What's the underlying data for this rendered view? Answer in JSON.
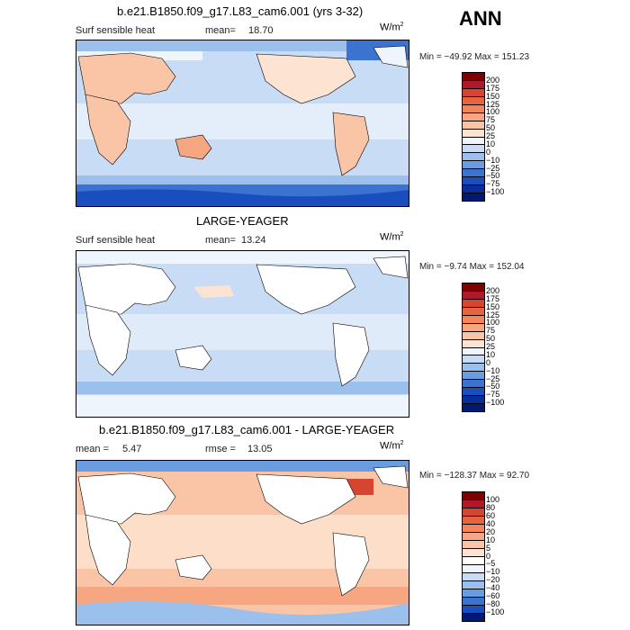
{
  "figure": {
    "season": "ANN",
    "units_base": "W/m",
    "units_exp": "2"
  },
  "panels": [
    {
      "title": "b.e21.B1850.f09_g17.L83_cam6.001 (yrs 3-32)",
      "left_label": "Surf sensible heat",
      "stat_label": "mean=",
      "stat_value": "18.70",
      "minmax": "Min = −49.92 Max = 151.23",
      "colorbar": {
        "labels": [
          "200",
          "175",
          "150",
          "125",
          "100",
          "75",
          "50",
          "25",
          "10",
          "0",
          "−10",
          "−25",
          "−50",
          "−75",
          "−100"
        ],
        "colors": [
          "#800000",
          "#b2182b",
          "#d6452f",
          "#e8643f",
          "#f4845a",
          "#f7a682",
          "#fac5a6",
          "#fde3d2",
          "#eef5fc",
          "#c8ddf5",
          "#9cc0ec",
          "#6a9de0",
          "#3c73d0",
          "#1a4ebf",
          "#0a2d9c",
          "#001a73"
        ]
      }
    },
    {
      "title": "LARGE-YEAGER",
      "left_label": "Surf sensible heat",
      "stat_label": "mean=",
      "stat_value": "13.24",
      "minmax": "Min = −9.74 Max = 152.04",
      "colorbar": {
        "labels": [
          "200",
          "175",
          "150",
          "125",
          "100",
          "75",
          "50",
          "25",
          "10",
          "0",
          "−10",
          "−25",
          "−50",
          "−75",
          "−100"
        ],
        "colors": [
          "#800000",
          "#b2182b",
          "#d6452f",
          "#e8643f",
          "#f4845a",
          "#f7a682",
          "#fac5a6",
          "#fde3d2",
          "#eef5fc",
          "#c8ddf5",
          "#9cc0ec",
          "#6a9de0",
          "#3c73d0",
          "#1a4ebf",
          "#0a2d9c",
          "#001a73"
        ]
      }
    },
    {
      "title": "b.e21.B1850.f09_g17.L83_cam6.001 - LARGE-YEAGER",
      "left_label": "mean =",
      "left_value": "5.47",
      "stat_label": "rmse =",
      "stat_value": "13.05",
      "minmax": "Min = −128.37 Max = 92.70",
      "colorbar": {
        "labels": [
          "100",
          "80",
          "60",
          "40",
          "20",
          "10",
          "5",
          "0",
          "−5",
          "−10",
          "−20",
          "−40",
          "−60",
          "−80",
          "−100"
        ],
        "colors": [
          "#800000",
          "#b2182b",
          "#d6452f",
          "#e8643f",
          "#f4845a",
          "#f7a682",
          "#fac5a6",
          "#fde3d2",
          "#ffffff",
          "#eef5fc",
          "#c8ddf5",
          "#9cc0ec",
          "#6a9de0",
          "#3c73d0",
          "#1a4ebf",
          "#001a73"
        ]
      }
    }
  ],
  "chart_data": [
    {
      "type": "heatmap",
      "title": "b.e21.B1850.f09_g17.L83_cam6.001 (yrs 3-32)",
      "variable": "Surf sensible heat",
      "units": "W/m2",
      "mean": 18.7,
      "min": -49.92,
      "max": 151.23,
      "contour_levels": [
        -100,
        -75,
        -50,
        -25,
        -10,
        0,
        10,
        25,
        50,
        75,
        100,
        125,
        150,
        175,
        200
      ]
    },
    {
      "type": "heatmap",
      "title": "LARGE-YEAGER",
      "variable": "Surf sensible heat",
      "units": "W/m2",
      "mean": 13.24,
      "min": -9.74,
      "max": 152.04,
      "contour_levels": [
        -100,
        -75,
        -50,
        -25,
        -10,
        0,
        10,
        25,
        50,
        75,
        100,
        125,
        150,
        175,
        200
      ]
    },
    {
      "type": "heatmap",
      "title": "b.e21.B1850.f09_g17.L83_cam6.001 - LARGE-YEAGER",
      "units": "W/m2",
      "mean": 5.47,
      "rmse": 13.05,
      "min": -128.37,
      "max": 92.7,
      "contour_levels": [
        -100,
        -80,
        -60,
        -40,
        -20,
        -10,
        -5,
        0,
        5,
        10,
        20,
        40,
        60,
        80,
        100
      ]
    }
  ]
}
